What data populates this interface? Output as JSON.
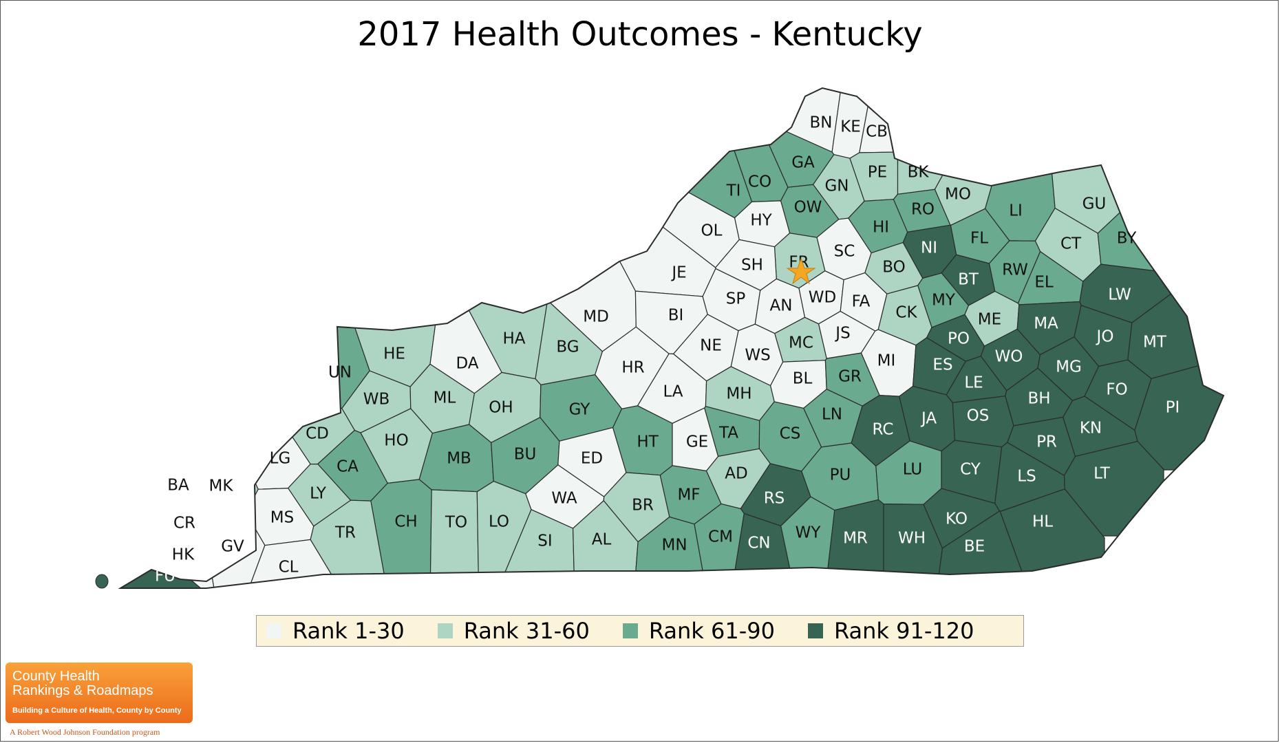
{
  "title": "2017 Health Outcomes - Kentucky",
  "colors": {
    "rank_1_30": "#f1f5f3",
    "rank_31_60": "#aed5c3",
    "rank_61_90": "#6aab90",
    "rank_91_120": "#376453",
    "star": "#f5a623",
    "legend_bg": "#fbf3da"
  },
  "legend": [
    {
      "label": "Rank 1-30",
      "group": 1
    },
    {
      "label": "Rank 31-60",
      "group": 2
    },
    {
      "label": "Rank 61-90",
      "group": 3
    },
    {
      "label": "Rank 91-120",
      "group": 4
    }
  ],
  "counties": [
    {
      "code": "BN",
      "group": 1
    },
    {
      "code": "KE",
      "group": 1
    },
    {
      "code": "CB",
      "group": 1
    },
    {
      "code": "GA",
      "group": 3
    },
    {
      "code": "CO",
      "group": 3
    },
    {
      "code": "TI",
      "group": 3
    },
    {
      "code": "GN",
      "group": 2
    },
    {
      "code": "PE",
      "group": 2
    },
    {
      "code": "BK",
      "group": 2
    },
    {
      "code": "MO",
      "group": 2
    },
    {
      "code": "LI",
      "group": 3
    },
    {
      "code": "GU",
      "group": 2
    },
    {
      "code": "OW",
      "group": 3
    },
    {
      "code": "HY",
      "group": 1
    },
    {
      "code": "OL",
      "group": 1
    },
    {
      "code": "HI",
      "group": 3
    },
    {
      "code": "RO",
      "group": 3
    },
    {
      "code": "FL",
      "group": 3
    },
    {
      "code": "CT",
      "group": 2
    },
    {
      "code": "BY",
      "group": 3
    },
    {
      "code": "NI",
      "group": 4
    },
    {
      "code": "SC",
      "group": 1
    },
    {
      "code": "FR",
      "group": 2
    },
    {
      "code": "SH",
      "group": 1
    },
    {
      "code": "JE",
      "group": 1
    },
    {
      "code": "BO",
      "group": 2
    },
    {
      "code": "BT",
      "group": 4
    },
    {
      "code": "RW",
      "group": 3
    },
    {
      "code": "EL",
      "group": 3
    },
    {
      "code": "LW",
      "group": 4
    },
    {
      "code": "MD",
      "group": 1
    },
    {
      "code": "BI",
      "group": 1
    },
    {
      "code": "SP",
      "group": 1
    },
    {
      "code": "AN",
      "group": 1
    },
    {
      "code": "WD",
      "group": 1
    },
    {
      "code": "FA",
      "group": 1
    },
    {
      "code": "MY",
      "group": 3
    },
    {
      "code": "CK",
      "group": 2
    },
    {
      "code": "ME",
      "group": 2
    },
    {
      "code": "MA",
      "group": 4
    },
    {
      "code": "JO",
      "group": 4
    },
    {
      "code": "MT",
      "group": 4
    },
    {
      "code": "HA",
      "group": 2
    },
    {
      "code": "HE",
      "group": 2
    },
    {
      "code": "DA",
      "group": 1
    },
    {
      "code": "BG",
      "group": 2
    },
    {
      "code": "HR",
      "group": 1
    },
    {
      "code": "NE",
      "group": 1
    },
    {
      "code": "WS",
      "group": 1
    },
    {
      "code": "MC",
      "group": 2
    },
    {
      "code": "JS",
      "group": 1
    },
    {
      "code": "MI",
      "group": 1
    },
    {
      "code": "PO",
      "group": 4
    },
    {
      "code": "ES",
      "group": 4
    },
    {
      "code": "WO",
      "group": 4
    },
    {
      "code": "MG",
      "group": 4
    },
    {
      "code": "UN",
      "group": 3
    },
    {
      "code": "WB",
      "group": 2
    },
    {
      "code": "ML",
      "group": 2
    },
    {
      "code": "OH",
      "group": 2
    },
    {
      "code": "GY",
      "group": 3
    },
    {
      "code": "LA",
      "group": 1
    },
    {
      "code": "MH",
      "group": 2
    },
    {
      "code": "BL",
      "group": 1
    },
    {
      "code": "GR",
      "group": 3
    },
    {
      "code": "LE",
      "group": 4
    },
    {
      "code": "BH",
      "group": 4
    },
    {
      "code": "FO",
      "group": 4
    },
    {
      "code": "PI",
      "group": 4
    },
    {
      "code": "CD",
      "group": 2
    },
    {
      "code": "HO",
      "group": 2
    },
    {
      "code": "LG",
      "group": 1
    },
    {
      "code": "CA",
      "group": 3
    },
    {
      "code": "MB",
      "group": 3
    },
    {
      "code": "BU",
      "group": 3
    },
    {
      "code": "ED",
      "group": 1
    },
    {
      "code": "HT",
      "group": 3
    },
    {
      "code": "GE",
      "group": 1
    },
    {
      "code": "TA",
      "group": 3
    },
    {
      "code": "CS",
      "group": 3
    },
    {
      "code": "LN",
      "group": 3
    },
    {
      "code": "RC",
      "group": 4
    },
    {
      "code": "JA",
      "group": 4
    },
    {
      "code": "OS",
      "group": 4
    },
    {
      "code": "PR",
      "group": 4
    },
    {
      "code": "KN",
      "group": 4
    },
    {
      "code": "BA",
      "group": 3
    },
    {
      "code": "MK",
      "group": 2
    },
    {
      "code": "LY",
      "group": 2
    },
    {
      "code": "MS",
      "group": 1
    },
    {
      "code": "TR",
      "group": 2
    },
    {
      "code": "CH",
      "group": 3
    },
    {
      "code": "TO",
      "group": 2
    },
    {
      "code": "LO",
      "group": 2
    },
    {
      "code": "WA",
      "group": 1
    },
    {
      "code": "BR",
      "group": 2
    },
    {
      "code": "MF",
      "group": 3
    },
    {
      "code": "AD",
      "group": 2
    },
    {
      "code": "RS",
      "group": 4
    },
    {
      "code": "PU",
      "group": 3
    },
    {
      "code": "LU",
      "group": 3
    },
    {
      "code": "CY",
      "group": 4
    },
    {
      "code": "LS",
      "group": 4
    },
    {
      "code": "LT",
      "group": 4
    },
    {
      "code": "CR",
      "group": 2
    },
    {
      "code": "HK",
      "group": 1
    },
    {
      "code": "GV",
      "group": 1
    },
    {
      "code": "CL",
      "group": 1
    },
    {
      "code": "SI",
      "group": 2
    },
    {
      "code": "AL",
      "group": 2
    },
    {
      "code": "MN",
      "group": 3
    },
    {
      "code": "CM",
      "group": 3
    },
    {
      "code": "CN",
      "group": 4
    },
    {
      "code": "WY",
      "group": 3
    },
    {
      "code": "MR",
      "group": 4
    },
    {
      "code": "WH",
      "group": 4
    },
    {
      "code": "KO",
      "group": 4
    },
    {
      "code": "BE",
      "group": 4
    },
    {
      "code": "HL",
      "group": 4
    },
    {
      "code": "FU",
      "group": 4
    }
  ],
  "capital_marker": {
    "county": "FR",
    "icon": "star-icon"
  },
  "logo": {
    "line1": "County Health",
    "line2": "Rankings & Roadmaps",
    "subtitle": "Building a Culture of Health, County by County",
    "tagline": "A Robert Wood Johnson Foundation program"
  }
}
